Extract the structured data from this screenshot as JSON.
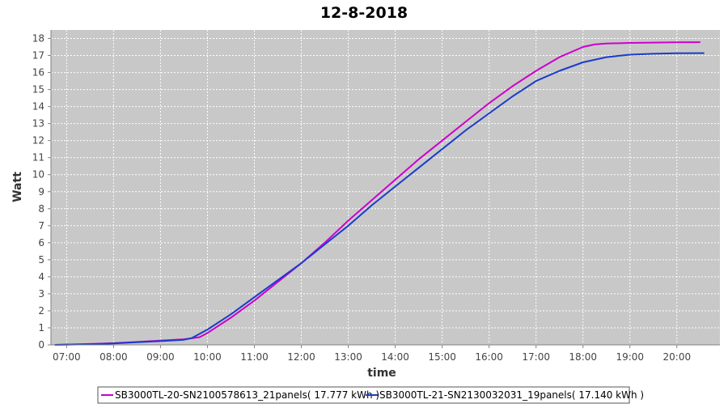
{
  "chart_data": {
    "type": "line",
    "title": "12-8-2018",
    "xlabel": "time",
    "ylabel": "Watt",
    "xlim": [
      "06:40",
      "20:55"
    ],
    "ylim": [
      0,
      18.5
    ],
    "x_ticks": [
      "07:00",
      "08:00",
      "09:00",
      "10:00",
      "11:00",
      "12:00",
      "13:00",
      "14:00",
      "15:00",
      "16:00",
      "17:00",
      "18:00",
      "19:00",
      "20:00"
    ],
    "y_ticks": [
      0,
      1,
      2,
      3,
      4,
      5,
      6,
      7,
      8,
      9,
      10,
      11,
      12,
      13,
      14,
      15,
      16,
      17,
      18
    ],
    "grid": true,
    "legend_position": "bottom",
    "series": [
      {
        "name": "SB3000TL-20-SN2100578613_21panels( 17.777 kWh )",
        "color": "#cc00cc",
        "x": [
          "06:45",
          "07:30",
          "08:00",
          "08:30",
          "09:00",
          "09:30",
          "09:50",
          "10:00",
          "10:30",
          "11:00",
          "11:30",
          "12:00",
          "12:30",
          "13:00",
          "13:30",
          "14:00",
          "14:30",
          "15:00",
          "15:30",
          "16:00",
          "16:30",
          "17:00",
          "17:30",
          "18:00",
          "18:15",
          "18:30",
          "19:00",
          "19:30",
          "20:00",
          "20:30"
        ],
        "values": [
          0.0,
          0.05,
          0.1,
          0.17,
          0.25,
          0.33,
          0.45,
          0.7,
          1.6,
          2.6,
          3.7,
          4.8,
          6.0,
          7.3,
          8.5,
          9.7,
          10.9,
          12.0,
          13.1,
          14.2,
          15.2,
          16.1,
          16.9,
          17.5,
          17.65,
          17.7,
          17.74,
          17.76,
          17.77,
          17.78
        ]
      },
      {
        "name": "SB3000TL-21-SN2130032031_19panels( 17.140 kWh )",
        "color": "#1a3ccc",
        "x": [
          "06:45",
          "07:30",
          "08:00",
          "08:30",
          "09:00",
          "09:30",
          "09:40",
          "10:00",
          "10:30",
          "11:00",
          "11:30",
          "12:00",
          "12:30",
          "13:00",
          "13:30",
          "14:00",
          "14:30",
          "15:00",
          "15:30",
          "16:00",
          "16:30",
          "17:00",
          "17:30",
          "18:00",
          "18:30",
          "19:00",
          "19:30",
          "20:00",
          "20:35"
        ],
        "values": [
          0.0,
          0.04,
          0.08,
          0.15,
          0.22,
          0.3,
          0.4,
          0.9,
          1.8,
          2.8,
          3.8,
          4.8,
          5.9,
          7.0,
          8.2,
          9.3,
          10.4,
          11.5,
          12.6,
          13.6,
          14.6,
          15.5,
          16.1,
          16.6,
          16.9,
          17.05,
          17.1,
          17.13,
          17.14
        ]
      }
    ]
  }
}
